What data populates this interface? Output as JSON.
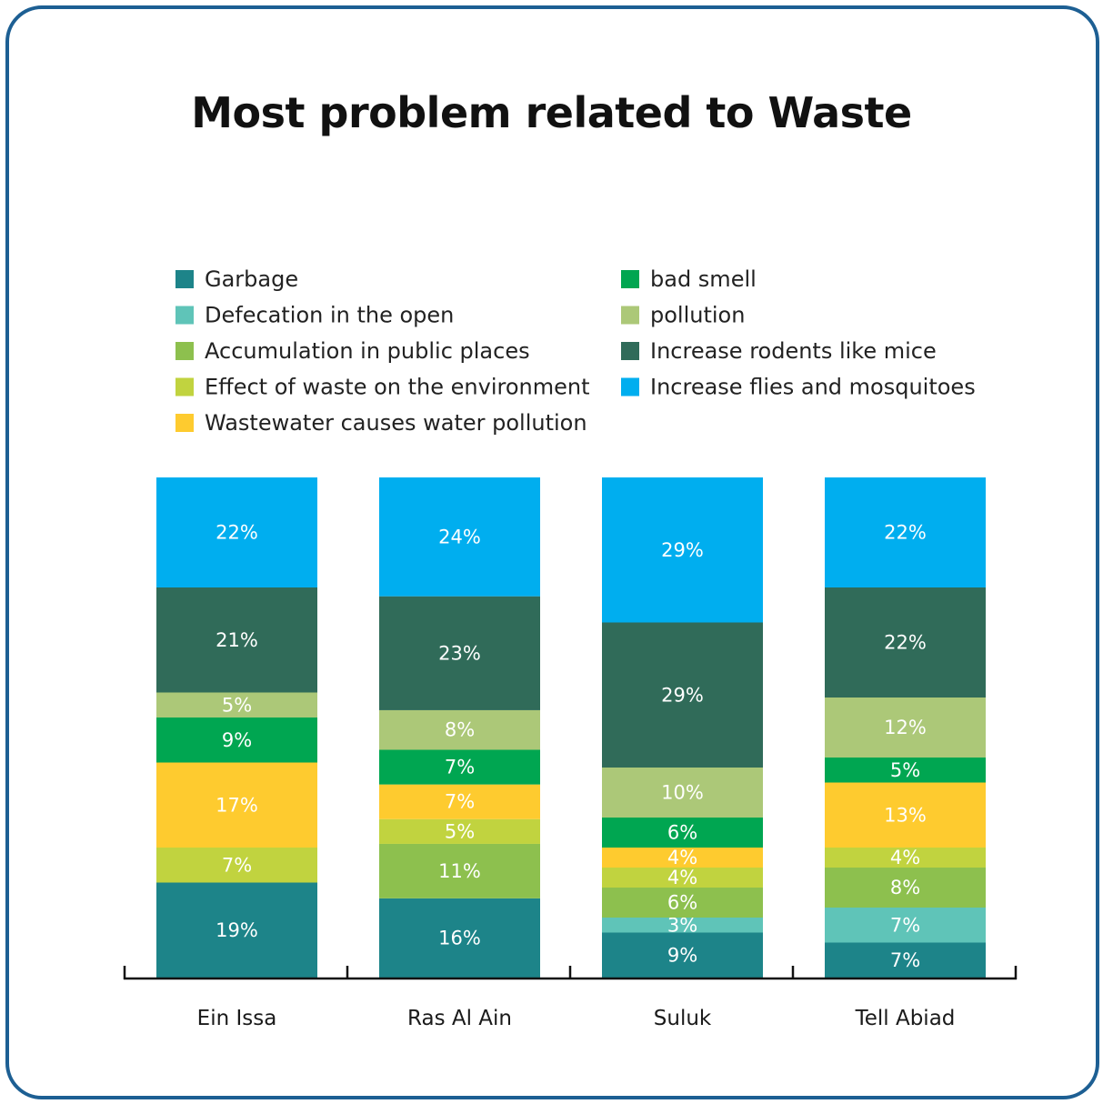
{
  "title": "Most problem related to Waste",
  "chart_data": {
    "type": "bar",
    "stacked": true,
    "title": "Most problem related to Waste",
    "categories": [
      "Ein Issa",
      "Ras Al Ain",
      "Suluk",
      "Tell Abiad"
    ],
    "series": [
      {
        "name": "Garbage",
        "color": "#1d8489",
        "values": [
          19,
          16,
          9,
          7
        ]
      },
      {
        "name": "Defecation in the open",
        "color": "#5fc4b8",
        "values": [
          0,
          0,
          3,
          7
        ]
      },
      {
        "name": "Accumulation in public places",
        "color": "#8dc04e",
        "values": [
          0,
          11,
          6,
          8
        ]
      },
      {
        "name": "Effect of waste on the environment",
        "color": "#c1d33f",
        "values": [
          7,
          5,
          4,
          4
        ]
      },
      {
        "name": "Wastewater causes water pollution",
        "color": "#fecb2f",
        "values": [
          17,
          7,
          4,
          13
        ]
      },
      {
        "name": "bad smell",
        "color": "#00a651",
        "values": [
          9,
          7,
          6,
          5
        ]
      },
      {
        "name": "pollution",
        "color": "#acc878",
        "values": [
          5,
          8,
          10,
          12
        ]
      },
      {
        "name": "Increase rodents like mice",
        "color": "#306b59",
        "values": [
          21,
          23,
          29,
          22
        ]
      },
      {
        "name": "Increase flies and mosquitoes",
        "color": "#00aeef",
        "values": [
          22,
          24,
          29,
          22
        ]
      }
    ],
    "value_labels": [
      [
        "19%",
        "",
        "",
        "7%",
        "17%",
        "9%",
        "5%",
        "21%",
        "22%"
      ],
      [
        "16%",
        "",
        "11%",
        "5%",
        "7%",
        "7%",
        "8%",
        "23%",
        "24%"
      ],
      [
        "9%",
        "3%",
        "6%",
        "4%",
        "4%",
        "6%",
        "10%",
        "29%",
        "29%"
      ],
      [
        "7%",
        "7%",
        "8%",
        "4%",
        "13%",
        "5%",
        "12%",
        "22%",
        "22%"
      ]
    ],
    "legend_position": "top",
    "grid": false
  }
}
